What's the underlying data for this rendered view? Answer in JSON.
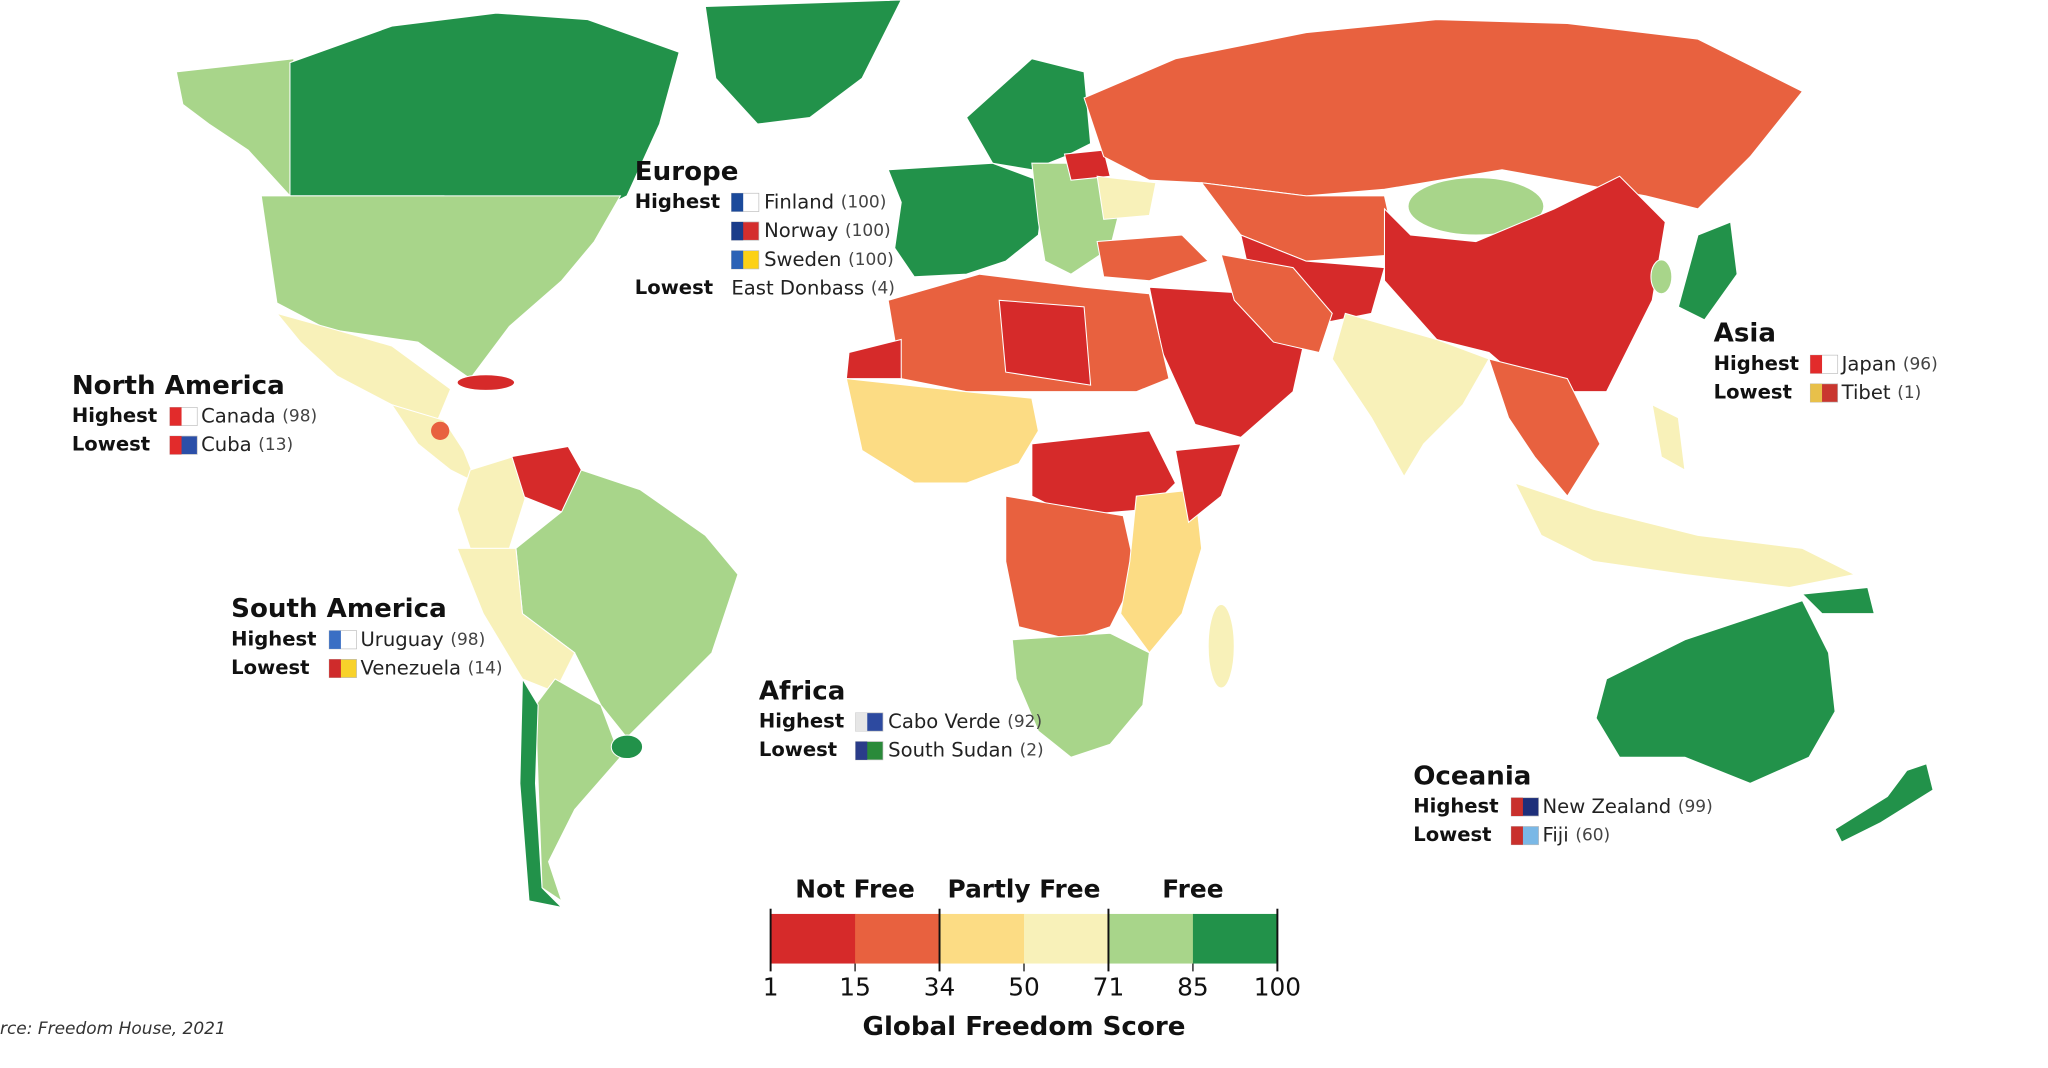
{
  "map": {
    "regions": [
      {
        "name": "Europe",
        "highest_label": "Highest",
        "highest": [
          {
            "country": "Finland",
            "score": "(100)"
          },
          {
            "country": "Norway",
            "score": "(100)"
          },
          {
            "country": "Sweden",
            "score": "(100)"
          }
        ],
        "lowest_label": "Lowest",
        "lowest": [
          {
            "country": "East Donbass",
            "score": "(4)"
          }
        ]
      },
      {
        "name": "North America",
        "highest_label": "Highest",
        "highest": [
          {
            "country": "Canada",
            "score": "(98)"
          }
        ],
        "lowest_label": "Lowest",
        "lowest": [
          {
            "country": "Cuba",
            "score": "(13)"
          }
        ]
      },
      {
        "name": "South America",
        "highest_label": "Highest",
        "highest": [
          {
            "country": "Uruguay",
            "score": "(98)"
          }
        ],
        "lowest_label": "Lowest",
        "lowest": [
          {
            "country": "Venezuela",
            "score": "(14)"
          }
        ]
      },
      {
        "name": "Africa",
        "highest_label": "Highest",
        "highest": [
          {
            "country": "Cabo Verde",
            "score": "(92)"
          }
        ],
        "lowest_label": "Lowest",
        "lowest": [
          {
            "country": "South Sudan",
            "score": "(2)"
          }
        ]
      },
      {
        "name": "Asia",
        "highest_label": "Highest",
        "highest": [
          {
            "country": "Japan",
            "score": "(96)"
          }
        ],
        "lowest_label": "Lowest",
        "lowest": [
          {
            "country": "Tibet",
            "score": "(1)"
          }
        ]
      },
      {
        "name": "Oceania",
        "highest_label": "Highest",
        "highest": [
          {
            "country": "New Zealand",
            "score": "(99)"
          }
        ],
        "lowest_label": "Lowest",
        "lowest": [
          {
            "country": "Fiji",
            "score": "(60)"
          }
        ]
      }
    ],
    "legend": {
      "title": "Global Freedom Score",
      "groups": [
        "Not Free",
        "Partly Free",
        "Free"
      ],
      "ticks": [
        1,
        15,
        34,
        50,
        71,
        85,
        100
      ],
      "colors": [
        "#d62a2a",
        "#e8613f",
        "#fcdc84",
        "#f8f1b9",
        "#a8d58a",
        "#22924a"
      ]
    },
    "source": "rce: Freedom House, 2021"
  }
}
